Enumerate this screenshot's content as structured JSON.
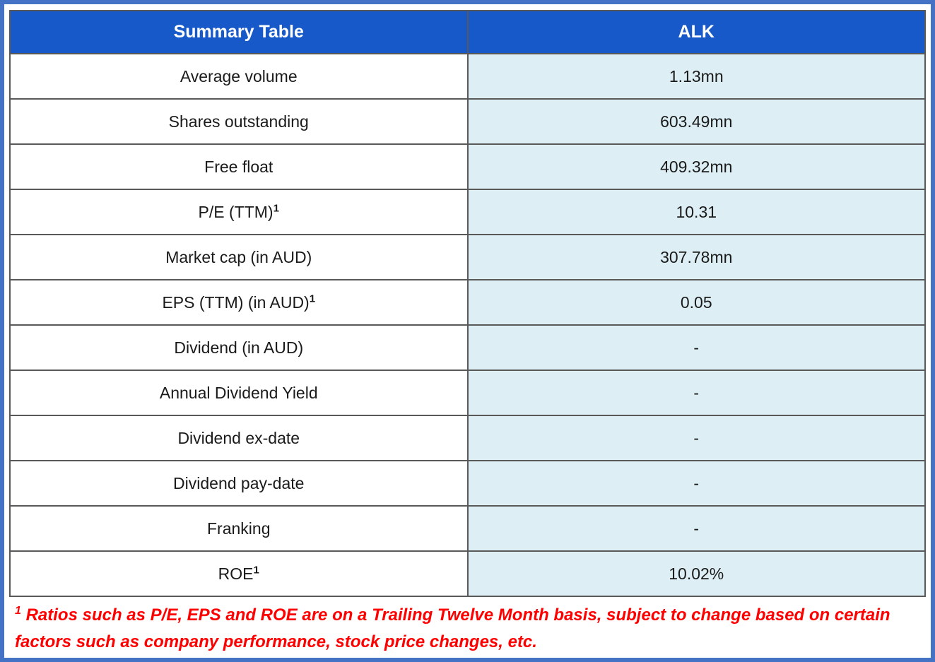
{
  "table": {
    "header": {
      "col1": "Summary Table",
      "col2": "ALK"
    },
    "rows": [
      {
        "label": "Average volume",
        "sup": "",
        "value": "1.13mn"
      },
      {
        "label": "Shares outstanding",
        "sup": "",
        "value": "603.49mn"
      },
      {
        "label": "Free float",
        "sup": "",
        "value": "409.32mn"
      },
      {
        "label": "P/E (TTM)",
        "sup": "1",
        "value": "10.31"
      },
      {
        "label": "Market cap (in AUD)",
        "sup": "",
        "value": "307.78mn"
      },
      {
        "label": "EPS (TTM) (in AUD)",
        "sup": "1",
        "value": "0.05"
      },
      {
        "label": "Dividend (in AUD)",
        "sup": "",
        "value": "-"
      },
      {
        "label": "Annual Dividend Yield",
        "sup": "",
        "value": "-"
      },
      {
        "label": "Dividend ex-date",
        "sup": "",
        "value": "-"
      },
      {
        "label": "Dividend pay-date",
        "sup": "",
        "value": "-"
      },
      {
        "label": "Franking",
        "sup": "",
        "value": "-"
      },
      {
        "label": "ROE",
        "sup": "1",
        "value": "10.02%"
      }
    ]
  },
  "footnote": {
    "sup": "1",
    "text": " Ratios such as P/E, EPS and ROE are on a Trailing Twelve Month basis, subject to change based on certain factors such as company performance, stock price changes, etc."
  },
  "colors": {
    "header_blue": "#1759C8",
    "cell_blue": "#DDEFF5",
    "frame_blue": "#4472C4",
    "border_gray": "#595959",
    "footnote_red": "#FF0000"
  },
  "chart_data": {
    "type": "table",
    "title": "Summary Table",
    "columns": [
      "Summary Table",
      "ALK"
    ],
    "rows": [
      [
        "Average volume",
        "1.13mn"
      ],
      [
        "Shares outstanding",
        "603.49mn"
      ],
      [
        "Free float",
        "409.32mn"
      ],
      [
        "P/E (TTM)",
        "10.31"
      ],
      [
        "Market cap (in AUD)",
        "307.78mn"
      ],
      [
        "EPS (TTM) (in AUD)",
        "0.05"
      ],
      [
        "Dividend (in AUD)",
        "-"
      ],
      [
        "Annual Dividend Yield",
        "-"
      ],
      [
        "Dividend ex-date",
        "-"
      ],
      [
        "Dividend pay-date",
        "-"
      ],
      [
        "Franking",
        "-"
      ],
      [
        "ROE",
        "10.02%"
      ]
    ],
    "footnote": "1 Ratios such as P/E, EPS and ROE are on a Trailing Twelve Month basis, subject to change based on certain factors such as company performance, stock price changes, etc."
  }
}
